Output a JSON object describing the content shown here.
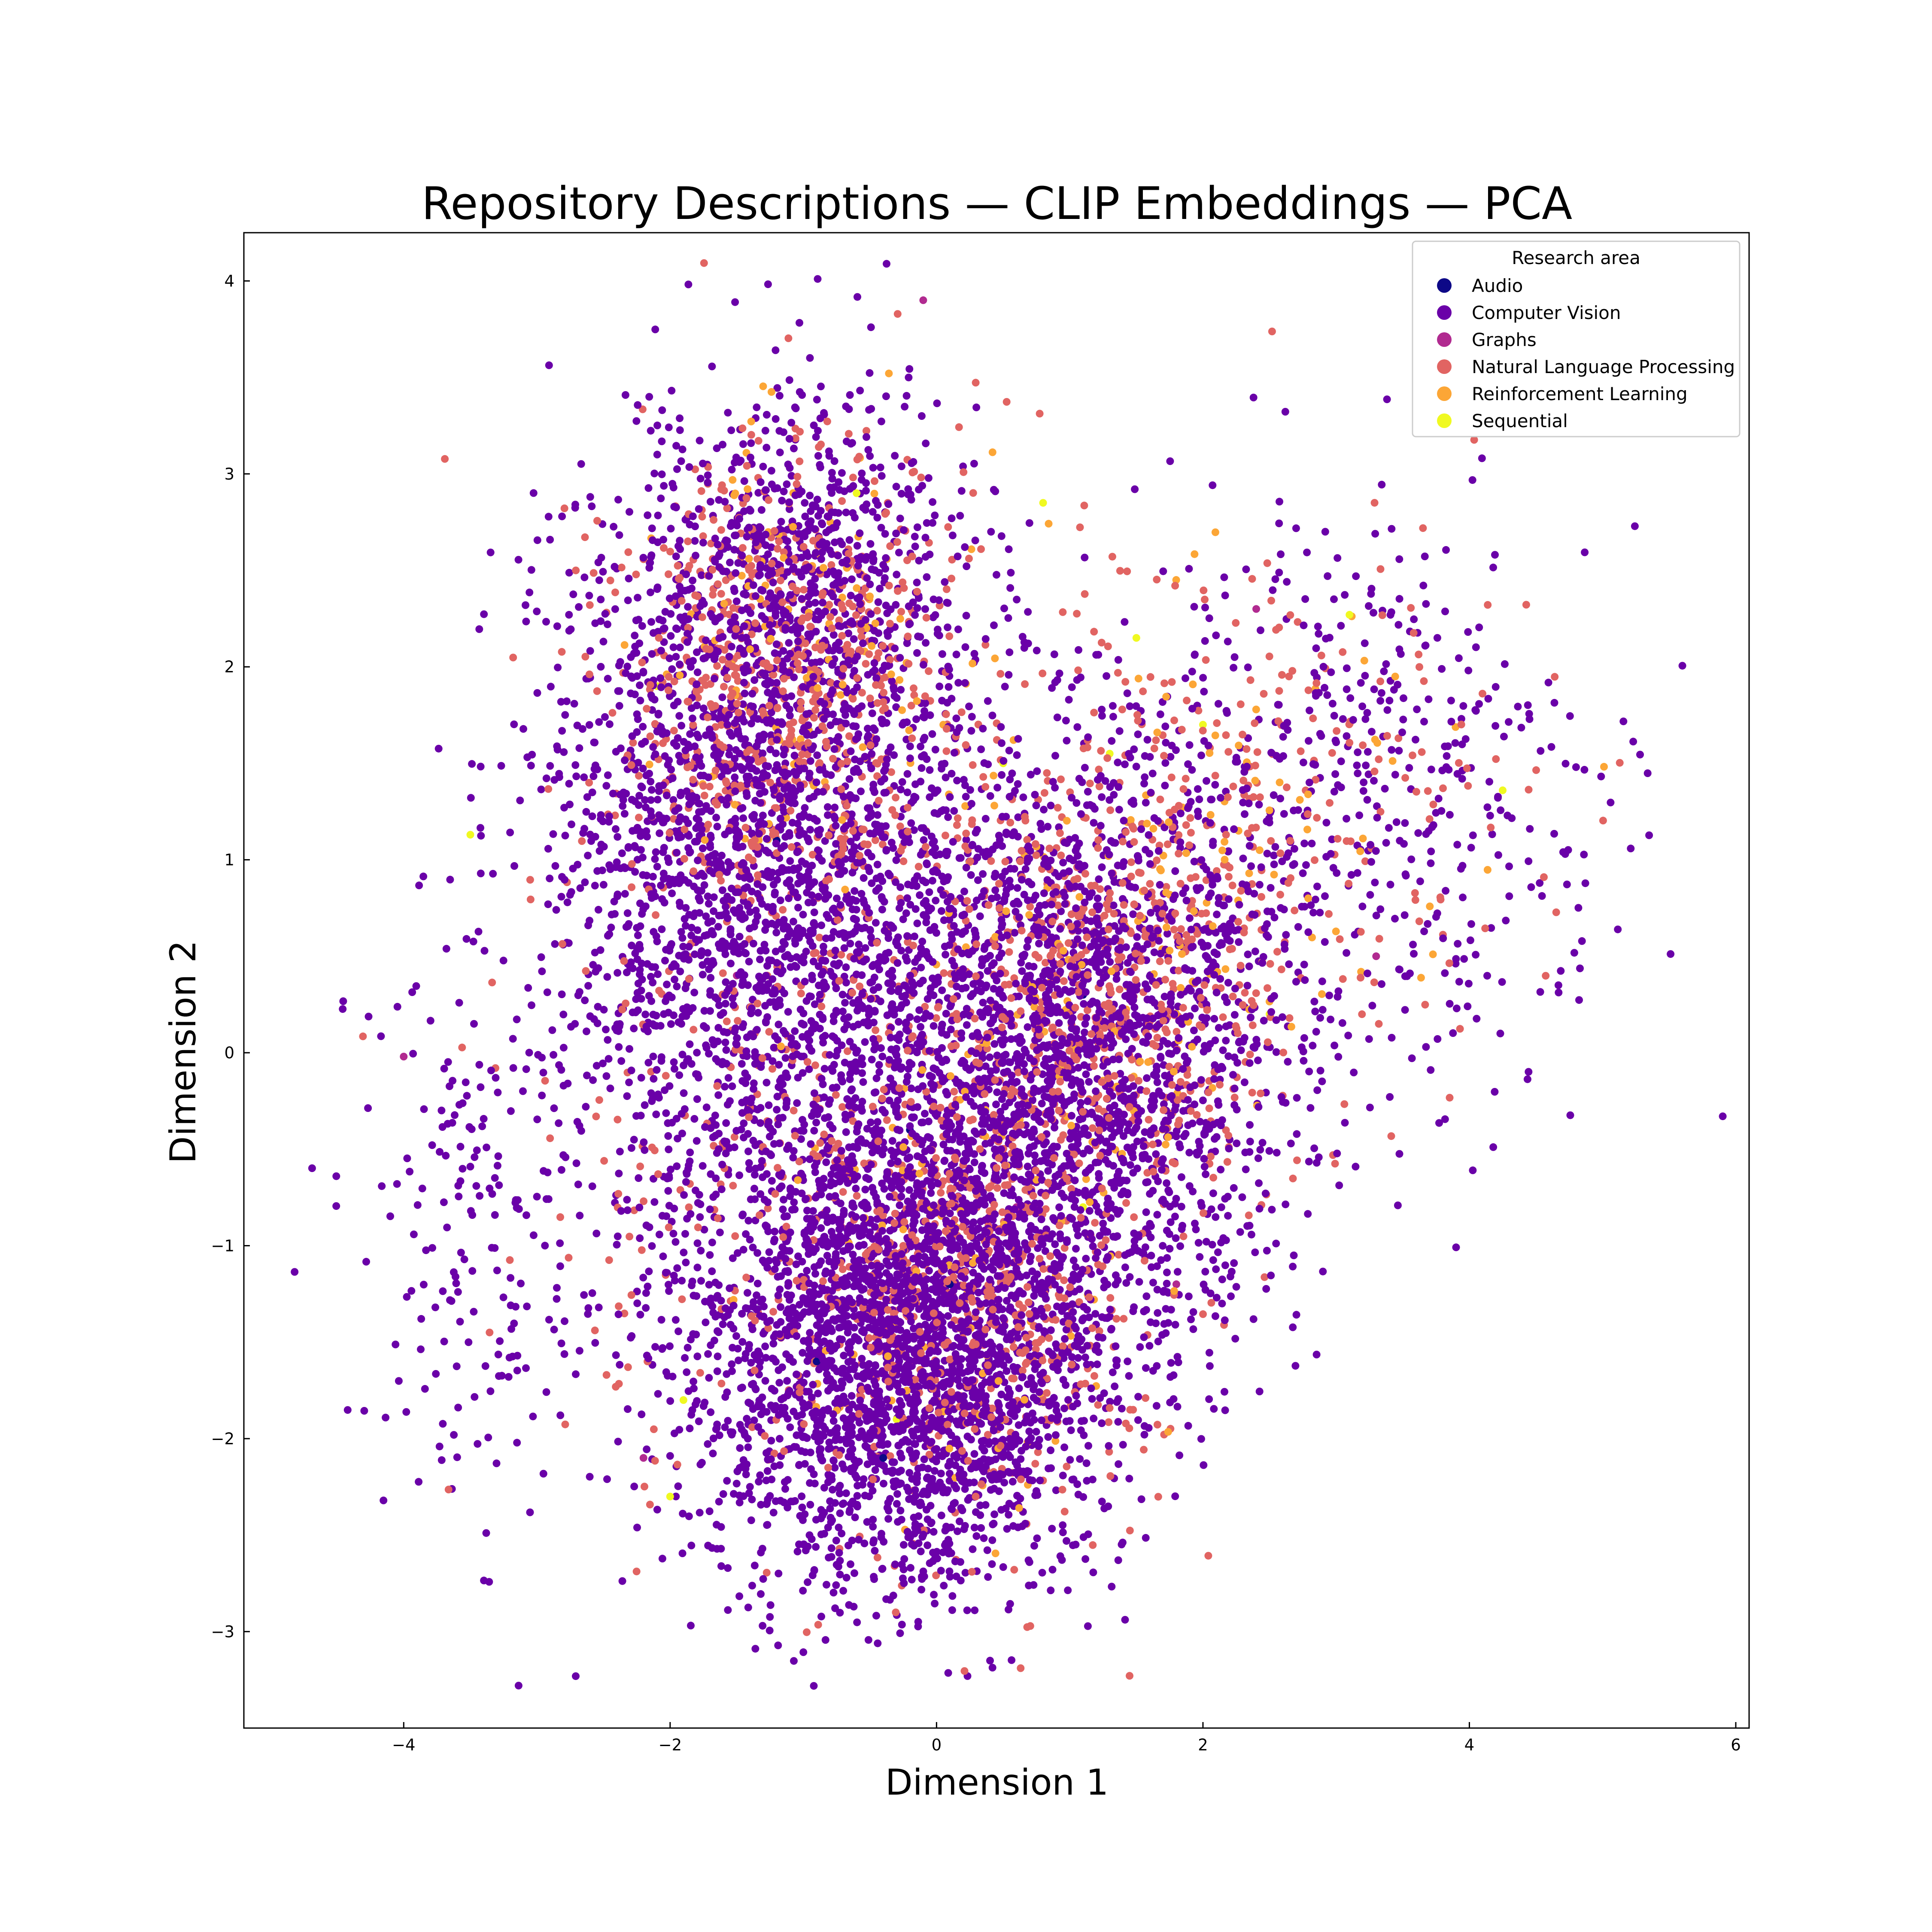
{
  "chart_data": {
    "type": "scatter",
    "title": "Repository Descriptions — CLIP Embeddings — PCA",
    "xlabel": "Dimension 1",
    "ylabel": "Dimension 2",
    "xlim": [
      -5.2,
      6.1
    ],
    "ylim": [
      -3.5,
      4.25
    ],
    "x_ticks": [
      -4,
      -2,
      0,
      2,
      4,
      6
    ],
    "y_ticks": [
      -3,
      -2,
      -1,
      0,
      1,
      2,
      3,
      4
    ],
    "x_tick_labels": [
      "−4",
      "−2",
      "0",
      "2",
      "4",
      "6"
    ],
    "y_tick_labels": [
      "−3",
      "−2",
      "−1",
      "0",
      "1",
      "2",
      "3",
      "4"
    ],
    "grid": false,
    "legend": {
      "title": "Research area",
      "placement": "top-right"
    },
    "series": [
      {
        "name": "Audio",
        "color": "#0d0887",
        "points": [
          [
            -0.9,
            -1.6
          ],
          [
            -0.4,
            -2.1
          ],
          [
            0.1,
            -1.2
          ],
          [
            -1.2,
            1.1
          ],
          [
            1.1,
            0.3
          ],
          [
            -0.2,
            -0.4
          ]
        ]
      },
      {
        "name": "Computer Vision",
        "color": "#6a00a8",
        "clusters": [
          {
            "cx": -0.2,
            "cy": -1.6,
            "sx": 0.75,
            "sy": 0.6,
            "n": 2600
          },
          {
            "cx": 1.1,
            "cy": 0.0,
            "sx": 0.75,
            "sy": 0.75,
            "n": 2000
          },
          {
            "cx": -1.4,
            "cy": 1.3,
            "sx": 0.8,
            "sy": 0.9,
            "n": 1700
          },
          {
            "cx": -0.9,
            "cy": 0.0,
            "sx": 1.0,
            "sy": 1.0,
            "n": 1500
          },
          {
            "cx": 3.0,
            "cy": 1.3,
            "sx": 1.0,
            "sy": 0.75,
            "n": 550
          },
          {
            "cx": -3.5,
            "cy": -1.0,
            "sx": 0.55,
            "sy": 0.75,
            "n": 180
          },
          {
            "cx": -1.0,
            "cy": 2.5,
            "sx": 0.6,
            "sy": 0.5,
            "n": 500
          }
        ]
      },
      {
        "name": "Graphs",
        "color": "#b12a90",
        "points": [
          [
            -0.1,
            3.9
          ],
          [
            -4.0,
            -0.02
          ],
          [
            2.4,
            2.3
          ],
          [
            -1.5,
            0.4
          ],
          [
            0.6,
            -0.8
          ],
          [
            3.3,
            0.5
          ],
          [
            -2.2,
            -2.1
          ],
          [
            1.8,
            -1.2
          ]
        ]
      },
      {
        "name": "Natural Language Processing",
        "color": "#e16462",
        "clusters": [
          {
            "cx": -1.2,
            "cy": 2.0,
            "sx": 0.65,
            "sy": 0.6,
            "n": 650
          },
          {
            "cx": 1.3,
            "cy": 0.3,
            "sx": 0.7,
            "sy": 0.6,
            "n": 550
          },
          {
            "cx": 0.2,
            "cy": -1.3,
            "sx": 0.7,
            "sy": 0.6,
            "n": 550
          },
          {
            "cx": 2.6,
            "cy": 1.4,
            "sx": 1.0,
            "sy": 0.7,
            "n": 220
          },
          {
            "cx": -1.0,
            "cy": -0.2,
            "sx": 1.1,
            "sy": 1.1,
            "n": 350
          }
        ]
      },
      {
        "name": "Reinforcement Learning",
        "color": "#fca636",
        "clusters": [
          {
            "cx": -1.0,
            "cy": 2.1,
            "sx": 0.6,
            "sy": 0.6,
            "n": 110
          },
          {
            "cx": 1.4,
            "cy": 0.4,
            "sx": 0.7,
            "sy": 0.6,
            "n": 100
          },
          {
            "cx": 0.2,
            "cy": -1.2,
            "sx": 0.7,
            "sy": 0.6,
            "n": 90
          },
          {
            "cx": 2.5,
            "cy": 1.5,
            "sx": 1.0,
            "sy": 0.6,
            "n": 50
          }
        ]
      },
      {
        "name": "Sequential",
        "color": "#f0f921",
        "points": [
          [
            -3.5,
            1.13
          ],
          [
            1.5,
            2.15
          ],
          [
            3.1,
            2.27
          ],
          [
            4.25,
            1.36
          ],
          [
            0.8,
            2.85
          ],
          [
            -2.1,
            1.9
          ],
          [
            -2.0,
            -2.3
          ],
          [
            0.5,
            1.5
          ],
          [
            1.1,
            -0.8
          ],
          [
            -0.3,
            -1.9
          ],
          [
            2.5,
            0.2
          ],
          [
            -1.9,
            -1.8
          ],
          [
            2.0,
            1.7
          ],
          [
            -0.6,
            2.9
          ],
          [
            1.3,
            1.55
          ]
        ]
      }
    ]
  }
}
